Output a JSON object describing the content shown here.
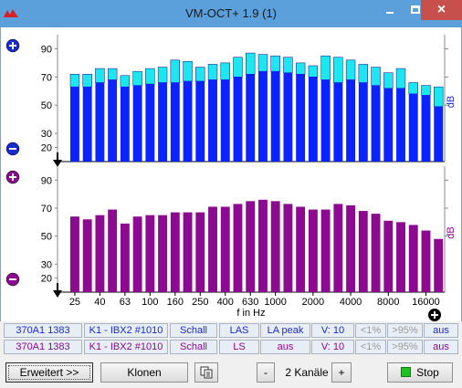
{
  "window": {
    "title": "VM-OCT+ 1.9 (1)",
    "min_icon": "minimize-icon",
    "max_icon": "maximize-icon",
    "close_label": "×"
  },
  "plots": {
    "x_label": "f in Hz",
    "x_ticks": [
      "25",
      "40",
      "63",
      "100",
      "160",
      "250",
      "400",
      "630",
      "1000",
      "2000",
      "4000",
      "8000",
      "16000"
    ],
    "unit": "dB",
    "y_ticks": [
      "90",
      "70",
      "50",
      "30",
      "20"
    ]
  },
  "chart_data": [
    {
      "type": "bar",
      "name": "top-spectrum",
      "categories": [
        "25",
        "31.5",
        "40",
        "50",
        "63",
        "80",
        "100",
        "125",
        "160",
        "200",
        "250",
        "315",
        "400",
        "500",
        "630",
        "800",
        "1000",
        "1250",
        "1600",
        "2000",
        "2500",
        "3150",
        "4000",
        "5000",
        "6300",
        "8000",
        "10000",
        "12500",
        "16000",
        "20000"
      ],
      "series": [
        {
          "values": [
            63,
            63,
            66,
            68,
            63,
            64,
            65,
            66,
            66,
            67,
            67,
            68,
            68,
            70,
            72,
            74,
            74,
            73,
            72,
            70,
            68,
            66,
            68,
            66,
            64,
            62,
            62,
            58,
            57,
            49
          ]
        },
        {
          "values": [
            72,
            72,
            76,
            76,
            71,
            74,
            76,
            77,
            82,
            81,
            77,
            79,
            80,
            84,
            87,
            86,
            85,
            84,
            80,
            78,
            85,
            84,
            82,
            79,
            77,
            73,
            76,
            66,
            64,
            63
          ]
        }
      ],
      "colors": {
        "base": "#0a23ff",
        "peak": "#1de6f0"
      },
      "ylim": [
        10,
        100
      ],
      "y_ticks": [
        90,
        70,
        50,
        30,
        20
      ],
      "ylabel": "dB",
      "xlabel": ""
    },
    {
      "type": "bar",
      "name": "bottom-spectrum",
      "categories": [
        "25",
        "31.5",
        "40",
        "50",
        "63",
        "80",
        "100",
        "125",
        "160",
        "200",
        "250",
        "315",
        "400",
        "500",
        "630",
        "800",
        "1000",
        "1250",
        "1600",
        "2000",
        "2500",
        "3150",
        "4000",
        "5000",
        "6300",
        "8000",
        "10000",
        "12500",
        "16000",
        "20000"
      ],
      "series": [
        {
          "values": [
            64,
            62,
            65,
            69,
            59,
            64,
            65,
            65,
            67,
            67,
            67,
            71,
            71,
            73,
            75,
            76,
            75,
            73,
            71,
            69,
            69,
            73,
            72,
            68,
            66,
            61,
            60,
            58,
            54,
            48
          ]
        }
      ],
      "colors": {
        "base": "#8b0a8f"
      },
      "ylim": [
        10,
        100
      ],
      "y_ticks": [
        90,
        70,
        50,
        30,
        20
      ],
      "ylabel": "dB",
      "xlabel": "f in Hz"
    }
  ],
  "status_rows": [
    {
      "cells": [
        "370A1 1383",
        "K1 - IBX2 #1010",
        "Schall",
        "LAS",
        "LA peak",
        "V: 10",
        "<1%",
        ">95%",
        "aus"
      ],
      "color": "#1a2ad1"
    },
    {
      "cells": [
        "370A1 1383",
        "K1 - IBX2 #1010",
        "Schall",
        "LS",
        "aus",
        "V: 10",
        "<1%",
        ">95%",
        "aus"
      ],
      "color": "#8b0a8f"
    }
  ],
  "toolbar": {
    "extended_label": "Erweitert >>",
    "clone_label": "Klonen",
    "copy_icon": "copy-icon",
    "minus_label": "-",
    "channels_label": "2 Kanäle",
    "plus_label": "+",
    "stop_label": "Stop"
  }
}
